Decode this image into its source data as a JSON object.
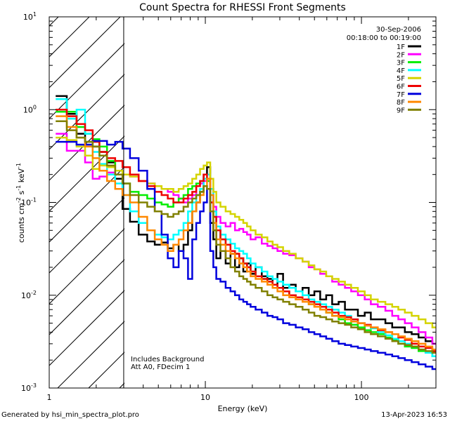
{
  "chart_data": {
    "type": "line",
    "title": "Count Spectra for RHESSI Front Segments",
    "xlabel": "Energy (keV)",
    "ylabel_parts": [
      "counts cm",
      "-2",
      " s",
      "-1",
      " keV",
      "-1"
    ],
    "x_scale": "log",
    "y_scale": "log",
    "xlim": [
      1,
      300
    ],
    "ylim": [
      0.001,
      10
    ],
    "x_ticks": [
      {
        "value": 1,
        "label": "1"
      },
      {
        "value": 10,
        "label": "10"
      },
      {
        "value": 100,
        "label": "100"
      }
    ],
    "y_ticks": [
      {
        "value": 0.001,
        "base": "10",
        "exp": "-3"
      },
      {
        "value": 0.01,
        "base": "10",
        "exp": "-2"
      },
      {
        "value": 0.1,
        "base": "10",
        "exp": "-1"
      },
      {
        "value": 1,
        "base": "10",
        "exp": "0"
      },
      {
        "value": 10,
        "base": "10",
        "exp": "1"
      }
    ],
    "hatch_region_keV": [
      1,
      3
    ],
    "legend_header": [
      "30-Sep-2006",
      "00:18:00 to 00:19:00"
    ],
    "annotations": [
      "Includes Background",
      "Att A0, FDecim 1"
    ],
    "energies": [
      1.2,
      1.4,
      1.6,
      1.8,
      2.0,
      2.2,
      2.5,
      2.8,
      3.1,
      3.5,
      4.0,
      4.5,
      5.0,
      5.5,
      6.0,
      6.5,
      7.0,
      7.5,
      8.0,
      8.5,
      9.0,
      9.5,
      10.0,
      10.5,
      11.0,
      11.5,
      12,
      13,
      14,
      15,
      16,
      17,
      18,
      19,
      20,
      22,
      24,
      26,
      28,
      30,
      33,
      36,
      40,
      44,
      48,
      52,
      57,
      62,
      68,
      75,
      82,
      90,
      100,
      110,
      120,
      135,
      150,
      165,
      180,
      200,
      220,
      245,
      270,
      300
    ],
    "series": [
      {
        "name": "1F",
        "color": "#000000",
        "values": [
          1.4,
          0.9,
          0.55,
          0.45,
          0.4,
          0.35,
          0.27,
          0.18,
          0.085,
          0.062,
          0.045,
          0.038,
          0.035,
          0.037,
          0.032,
          0.035,
          0.03,
          0.035,
          0.05,
          0.08,
          0.1,
          0.13,
          0.2,
          0.24,
          0.06,
          0.04,
          0.025,
          0.03,
          0.022,
          0.028,
          0.02,
          0.025,
          0.018,
          0.022,
          0.017,
          0.02,
          0.016,
          0.015,
          0.013,
          0.017,
          0.012,
          0.013,
          0.011,
          0.012,
          0.01,
          0.011,
          0.009,
          0.01,
          0.008,
          0.0085,
          0.007,
          0.007,
          0.006,
          0.0065,
          0.0055,
          0.0055,
          0.005,
          0.0045,
          0.0045,
          0.004,
          0.0038,
          0.0035,
          0.0032,
          0.003
        ]
      },
      {
        "name": "2F",
        "color": "#ff00ff",
        "values": [
          0.55,
          0.36,
          0.36,
          0.27,
          0.18,
          0.19,
          0.21,
          0.2,
          0.2,
          0.19,
          0.17,
          0.16,
          0.15,
          0.14,
          0.13,
          0.12,
          0.11,
          0.1,
          0.11,
          0.12,
          0.15,
          0.16,
          0.17,
          0.18,
          0.14,
          0.09,
          0.07,
          0.06,
          0.055,
          0.06,
          0.05,
          0.052,
          0.048,
          0.045,
          0.04,
          0.042,
          0.036,
          0.034,
          0.032,
          0.03,
          0.028,
          0.027,
          0.025,
          0.023,
          0.02,
          0.019,
          0.017,
          0.016,
          0.014,
          0.013,
          0.012,
          0.011,
          0.01,
          0.009,
          0.008,
          0.0075,
          0.0068,
          0.006,
          0.0055,
          0.005,
          0.0045,
          0.004,
          0.0035,
          0.003
        ]
      },
      {
        "name": "3F",
        "color": "#00ee00",
        "values": [
          0.95,
          0.95,
          0.65,
          0.55,
          0.48,
          0.4,
          0.28,
          0.2,
          0.16,
          0.13,
          0.12,
          0.11,
          0.1,
          0.095,
          0.09,
          0.1,
          0.11,
          0.12,
          0.14,
          0.15,
          0.16,
          0.17,
          0.18,
          0.17,
          0.1,
          0.07,
          0.05,
          0.04,
          0.035,
          0.03,
          0.028,
          0.025,
          0.022,
          0.02,
          0.018,
          0.016,
          0.015,
          0.014,
          0.013,
          0.012,
          0.011,
          0.01,
          0.009,
          0.009,
          0.008,
          0.0075,
          0.007,
          0.0065,
          0.006,
          0.0055,
          0.005,
          0.0048,
          0.0045,
          0.0042,
          0.004,
          0.0038,
          0.0035,
          0.0033,
          0.003,
          0.0028,
          0.0027,
          0.0025,
          0.0024,
          0.0022
        ]
      },
      {
        "name": "4F",
        "color": "#00ffff",
        "values": [
          1.3,
          0.8,
          1.0,
          0.55,
          0.35,
          0.26,
          0.2,
          0.16,
          0.12,
          0.08,
          0.06,
          0.05,
          0.045,
          0.042,
          0.04,
          0.045,
          0.05,
          0.06,
          0.08,
          0.1,
          0.12,
          0.14,
          0.18,
          0.2,
          0.14,
          0.08,
          0.055,
          0.045,
          0.04,
          0.036,
          0.032,
          0.03,
          0.028,
          0.025,
          0.022,
          0.02,
          0.018,
          0.016,
          0.015,
          0.014,
          0.013,
          0.012,
          0.011,
          0.01,
          0.009,
          0.0085,
          0.008,
          0.0075,
          0.007,
          0.0065,
          0.006,
          0.0055,
          0.005,
          0.0047,
          0.0044,
          0.004,
          0.0037,
          0.0034,
          0.0032,
          0.003,
          0.0028,
          0.0026,
          0.0024,
          0.0022
        ]
      },
      {
        "name": "5F",
        "color": "#d4d400",
        "values": [
          0.5,
          0.47,
          0.4,
          0.32,
          0.23,
          0.25,
          0.24,
          0.22,
          0.2,
          0.19,
          0.17,
          0.16,
          0.15,
          0.14,
          0.14,
          0.13,
          0.14,
          0.15,
          0.16,
          0.18,
          0.2,
          0.23,
          0.25,
          0.27,
          0.18,
          0.13,
          0.1,
          0.09,
          0.08,
          0.075,
          0.07,
          0.065,
          0.06,
          0.055,
          0.05,
          0.045,
          0.042,
          0.038,
          0.035,
          0.033,
          0.03,
          0.028,
          0.025,
          0.023,
          0.021,
          0.019,
          0.018,
          0.016,
          0.015,
          0.014,
          0.013,
          0.012,
          0.011,
          0.01,
          0.009,
          0.0085,
          0.008,
          0.0075,
          0.007,
          0.0065,
          0.006,
          0.0055,
          0.005,
          0.0045
        ]
      },
      {
        "name": "6F",
        "color": "#ee0000",
        "values": [
          1.0,
          0.85,
          0.7,
          0.6,
          0.45,
          0.35,
          0.3,
          0.28,
          0.24,
          0.2,
          0.17,
          0.15,
          0.13,
          0.12,
          0.11,
          0.1,
          0.1,
          0.11,
          0.12,
          0.13,
          0.15,
          0.17,
          0.2,
          0.18,
          0.1,
          0.07,
          0.05,
          0.04,
          0.035,
          0.03,
          0.028,
          0.025,
          0.022,
          0.02,
          0.018,
          0.016,
          0.015,
          0.014,
          0.013,
          0.012,
          0.011,
          0.01,
          0.0095,
          0.009,
          0.0085,
          0.008,
          0.0075,
          0.007,
          0.0065,
          0.006,
          0.0058,
          0.0055,
          0.005,
          0.0048,
          0.0045,
          0.0042,
          0.004,
          0.0038,
          0.0035,
          0.0033,
          0.003,
          0.0028,
          0.0027,
          0.0025
        ]
      },
      {
        "name": "7F",
        "color": "#0000dd",
        "values": [
          0.45,
          0.45,
          0.42,
          0.42,
          0.46,
          0.46,
          0.42,
          0.45,
          0.38,
          0.3,
          0.22,
          0.14,
          0.08,
          0.045,
          0.025,
          0.02,
          0.03,
          0.025,
          0.015,
          0.04,
          0.06,
          0.08,
          0.1,
          0.14,
          0.03,
          0.02,
          0.015,
          0.014,
          0.012,
          0.011,
          0.01,
          0.009,
          0.0085,
          0.008,
          0.0075,
          0.007,
          0.0065,
          0.006,
          0.0058,
          0.0055,
          0.005,
          0.0048,
          0.0045,
          0.0043,
          0.004,
          0.0038,
          0.0036,
          0.0034,
          0.0032,
          0.003,
          0.0029,
          0.0028,
          0.0027,
          0.0026,
          0.0025,
          0.0024,
          0.0023,
          0.0022,
          0.0021,
          0.002,
          0.0019,
          0.0018,
          0.0017,
          0.0016
        ]
      },
      {
        "name": "8F",
        "color": "#ff8800",
        "values": [
          0.85,
          0.65,
          0.5,
          0.4,
          0.3,
          0.22,
          0.17,
          0.14,
          0.12,
          0.1,
          0.07,
          0.05,
          0.04,
          0.035,
          0.03,
          0.035,
          0.04,
          0.05,
          0.06,
          0.08,
          0.1,
          0.12,
          0.15,
          0.18,
          0.12,
          0.06,
          0.04,
          0.035,
          0.03,
          0.028,
          0.025,
          0.022,
          0.02,
          0.018,
          0.016,
          0.015,
          0.014,
          0.013,
          0.012,
          0.011,
          0.01,
          0.0095,
          0.009,
          0.0085,
          0.008,
          0.0075,
          0.007,
          0.0065,
          0.006,
          0.0058,
          0.0055,
          0.0052,
          0.005,
          0.0047,
          0.0045,
          0.0043,
          0.004,
          0.0038,
          0.0036,
          0.0034,
          0.0032,
          0.003,
          0.0028,
          0.0026
        ]
      },
      {
        "name": "9F",
        "color": "#808000",
        "values": [
          0.75,
          0.6,
          0.5,
          0.45,
          0.4,
          0.32,
          0.25,
          0.2,
          0.16,
          0.12,
          0.1,
          0.09,
          0.08,
          0.075,
          0.07,
          0.075,
          0.08,
          0.09,
          0.1,
          0.11,
          0.12,
          0.13,
          0.15,
          0.14,
          0.08,
          0.05,
          0.035,
          0.03,
          0.025,
          0.02,
          0.018,
          0.016,
          0.015,
          0.014,
          0.013,
          0.012,
          0.011,
          0.01,
          0.0095,
          0.009,
          0.0085,
          0.008,
          0.0075,
          0.007,
          0.0065,
          0.006,
          0.0058,
          0.0055,
          0.0052,
          0.005,
          0.0048,
          0.0045,
          0.0043,
          0.004,
          0.0038,
          0.0036,
          0.0034,
          0.0032,
          0.003,
          0.0029,
          0.0028,
          0.0026,
          0.0025,
          0.0024
        ]
      }
    ]
  },
  "footer": {
    "left": "Generated by hsi_min_spectra_plot.pro",
    "right": "13-Apr-2023 16:53"
  }
}
